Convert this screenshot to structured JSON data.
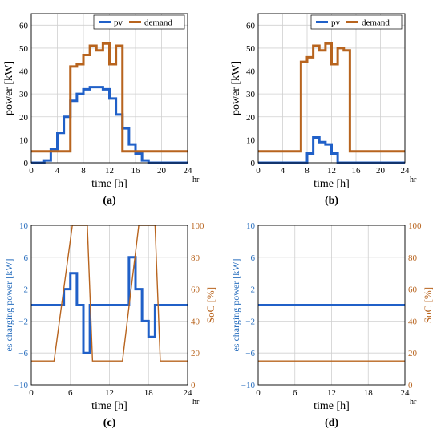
{
  "chart_data": [
    {
      "id": "a",
      "type": "line",
      "panel_label": "(a)",
      "xlabel": "time [h]",
      "ylabel": "power [kW]",
      "x_unit": "hr",
      "xlim": [
        0,
        24
      ],
      "ylim": [
        0,
        65
      ],
      "x_ticks": [
        0,
        4,
        8,
        12,
        16,
        20,
        24
      ],
      "y_ticks": [
        0,
        10,
        20,
        30,
        40,
        50,
        60
      ],
      "grid": true,
      "legend": "top-right",
      "step": true,
      "series": [
        {
          "name": "pv",
          "color": "#2060c8",
          "x": [
            0,
            2,
            3,
            4,
            5,
            6,
            7,
            8,
            9,
            10,
            11,
            12,
            13,
            14,
            15,
            16,
            17,
            18,
            24
          ],
          "y": [
            0,
            1,
            6,
            13,
            20,
            27,
            30,
            32,
            33,
            33,
            32,
            28,
            21,
            15,
            8,
            4,
            1,
            0,
            0
          ]
        },
        {
          "name": "demand",
          "color": "#b8641e",
          "x": [
            0,
            6,
            7,
            8,
            9,
            10,
            11,
            12,
            13,
            14,
            15,
            24
          ],
          "y": [
            5,
            42,
            43,
            47,
            51,
            49,
            52,
            43,
            51,
            5,
            5,
            5
          ]
        }
      ]
    },
    {
      "id": "b",
      "type": "line",
      "panel_label": "(b)",
      "xlabel": "time [h]",
      "ylabel": "power [kW]",
      "x_unit": "hr",
      "xlim": [
        0,
        24
      ],
      "ylim": [
        0,
        65
      ],
      "x_ticks": [
        0,
        4,
        8,
        12,
        16,
        20,
        24
      ],
      "y_ticks": [
        0,
        10,
        20,
        30,
        40,
        50,
        60
      ],
      "grid": true,
      "legend": "top-right",
      "step": true,
      "series": [
        {
          "name": "pv",
          "color": "#2060c8",
          "x": [
            0,
            8,
            9,
            10,
            11,
            12,
            13,
            24
          ],
          "y": [
            0,
            4,
            11,
            9,
            8,
            4,
            0,
            0
          ]
        },
        {
          "name": "demand",
          "color": "#b8641e",
          "x": [
            0,
            7,
            8,
            9,
            10,
            11,
            12,
            13,
            14,
            15,
            24
          ],
          "y": [
            5,
            44,
            46,
            51,
            49,
            52,
            43,
            50,
            49,
            5,
            5
          ]
        }
      ]
    },
    {
      "id": "c",
      "type": "line",
      "panel_label": "(c)",
      "xlabel": "time [h]",
      "ylabel": "es charging power [kW]",
      "y2label": "SoC [%]",
      "x_unit": "hr",
      "xlim": [
        0,
        24
      ],
      "ylim": [
        -10,
        10
      ],
      "y2lim": [
        0,
        100
      ],
      "x_ticks": [
        0,
        6,
        12,
        18,
        24
      ],
      "y_ticks": [
        -10,
        -6,
        -2,
        2,
        6,
        10
      ],
      "y2_ticks": [
        0,
        20,
        40,
        60,
        80,
        100
      ],
      "grid": true,
      "series": [
        {
          "name": "es charging power",
          "axis": "left",
          "step": true,
          "color": "#2060c8",
          "x": [
            0,
            4,
            5,
            6,
            7,
            8,
            9,
            10,
            11,
            12,
            13,
            14,
            15,
            16,
            17,
            18,
            19,
            20,
            24
          ],
          "y": [
            0,
            0,
            2,
            4,
            0,
            -6,
            0,
            0,
            0,
            0,
            0,
            0,
            6,
            2,
            -2,
            -4,
            0,
            0,
            0
          ]
        },
        {
          "name": "SoC",
          "axis": "right",
          "step": false,
          "color": "#b8641e",
          "x": [
            0,
            3.5,
            6.3,
            8.6,
            9.4,
            14,
            16.5,
            19,
            19.8,
            24
          ],
          "y": [
            15,
            15,
            100,
            100,
            15,
            15,
            100,
            100,
            15,
            15
          ]
        }
      ]
    },
    {
      "id": "d",
      "type": "line",
      "panel_label": "(d)",
      "xlabel": "time [h]",
      "ylabel": "es charging power [kW]",
      "y2label": "SoC [%]",
      "x_unit": "hr",
      "xlim": [
        0,
        24
      ],
      "ylim": [
        -10,
        10
      ],
      "y2lim": [
        0,
        100
      ],
      "x_ticks": [
        0,
        6,
        12,
        18,
        24
      ],
      "y_ticks": [
        -10,
        -6,
        -2,
        2,
        6,
        10
      ],
      "y2_ticks": [
        0,
        20,
        40,
        60,
        80,
        100
      ],
      "grid": true,
      "series": [
        {
          "name": "es charging power",
          "axis": "left",
          "step": true,
          "color": "#2060c8",
          "x": [
            0,
            24
          ],
          "y": [
            0,
            0
          ]
        },
        {
          "name": "SoC",
          "axis": "right",
          "step": false,
          "color": "#b8641e",
          "x": [
            0,
            24
          ],
          "y": [
            15,
            15
          ]
        }
      ]
    }
  ]
}
